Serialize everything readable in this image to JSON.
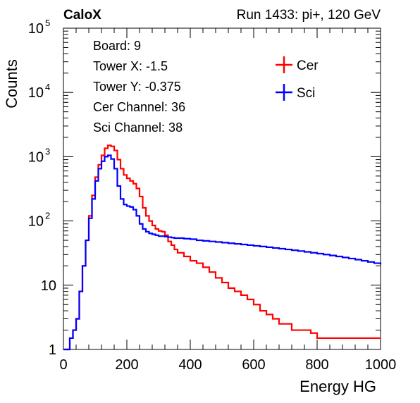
{
  "header": {
    "left_title": "CaloX",
    "right_title": "Run 1433: pi+, 120 GeV"
  },
  "info_box": {
    "lines": [
      "Board: 9",
      "Tower X: -1.5",
      "Tower Y: -0.375",
      "Cer Channel: 36",
      "Sci Channel: 38"
    ]
  },
  "chart_data": {
    "type": "line",
    "xlabel": "Energy HG",
    "ylabel": "Counts",
    "xlim": [
      0,
      1000
    ],
    "ylim": [
      1,
      100000
    ],
    "yscale": "log",
    "x_ticks": [
      "0",
      "200",
      "400",
      "600",
      "800",
      "1000"
    ],
    "y_ticks": [
      {
        "value": 1,
        "label": "1"
      },
      {
        "value": 10,
        "label": "10"
      },
      {
        "value": 100,
        "label": "10",
        "exp": "2"
      },
      {
        "value": 1000,
        "label": "10",
        "exp": "3"
      },
      {
        "value": 10000,
        "label": "10",
        "exp": "4"
      },
      {
        "value": 100000,
        "label": "10",
        "exp": "5"
      }
    ],
    "legend_position": "top-right",
    "series": [
      {
        "name": "Cer",
        "color": "#ff0000",
        "x": [
          0,
          20,
          30,
          40,
          50,
          60,
          70,
          80,
          90,
          100,
          110,
          120,
          130,
          140,
          150,
          160,
          170,
          180,
          190,
          200,
          210,
          220,
          230,
          240,
          250,
          260,
          270,
          280,
          290,
          300,
          310,
          320,
          330,
          340,
          350,
          360,
          380,
          400,
          420,
          440,
          460,
          480,
          500,
          520,
          540,
          560,
          580,
          600,
          620,
          640,
          660,
          680,
          700,
          720,
          740,
          760,
          780,
          800,
          820,
          840,
          860,
          880,
          900,
          920,
          940,
          960,
          980,
          1000
        ],
        "y": [
          1,
          1.5,
          2,
          3,
          8,
          20,
          50,
          120,
          250,
          480,
          750,
          1050,
          1350,
          1500,
          1450,
          1250,
          900,
          650,
          520,
          460,
          420,
          380,
          320,
          240,
          160,
          120,
          100,
          85,
          75,
          70,
          68,
          60,
          48,
          42,
          36,
          32,
          28,
          24,
          22,
          19,
          16,
          13,
          11,
          9,
          8,
          7,
          6,
          5,
          4,
          3.5,
          3,
          2.5,
          2.5,
          2,
          2,
          2,
          1.8,
          1.5,
          1.5,
          1.5,
          1.5,
          1.5,
          1.5,
          1.5,
          1.5,
          1.5,
          1.5,
          1.5
        ]
      },
      {
        "name": "Sci",
        "color": "#0000ff",
        "x": [
          0,
          20,
          30,
          40,
          50,
          60,
          70,
          80,
          90,
          100,
          110,
          120,
          130,
          140,
          150,
          160,
          170,
          180,
          190,
          200,
          210,
          220,
          230,
          240,
          250,
          260,
          270,
          280,
          290,
          300,
          310,
          320,
          330,
          340,
          350,
          360,
          380,
          400,
          420,
          440,
          460,
          480,
          500,
          520,
          540,
          560,
          580,
          600,
          620,
          640,
          660,
          680,
          700,
          720,
          740,
          760,
          780,
          800,
          820,
          840,
          860,
          880,
          900,
          920,
          940,
          960,
          980,
          1000
        ],
        "y": [
          1,
          1.5,
          2,
          3,
          8,
          20,
          50,
          110,
          220,
          420,
          650,
          850,
          1000,
          1050,
          920,
          650,
          350,
          220,
          180,
          170,
          165,
          150,
          120,
          90,
          75,
          68,
          64,
          62,
          60,
          58,
          58,
          57,
          56,
          55,
          54,
          54,
          53,
          52,
          50,
          49,
          48,
          47,
          46,
          45,
          44,
          43,
          42,
          41,
          40,
          39,
          38,
          37,
          36,
          35,
          34,
          33,
          32,
          31,
          30,
          29,
          28,
          27,
          26,
          25,
          24,
          23,
          22,
          21
        ]
      }
    ]
  }
}
